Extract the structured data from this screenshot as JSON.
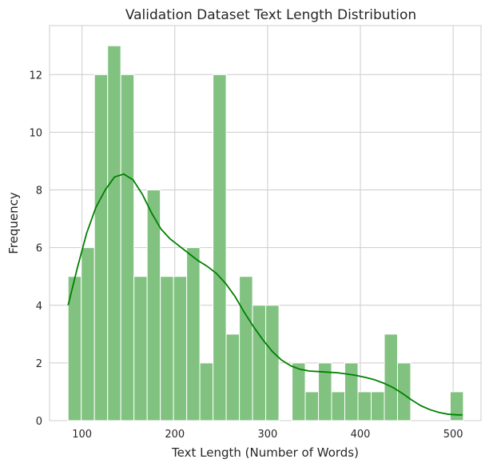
{
  "chart_data": {
    "type": "bar",
    "title": "Validation Dataset Text Length Distribution",
    "xlabel": "Text Length (Number of Words)",
    "ylabel": "Frequency",
    "xlim": [
      65,
      530
    ],
    "ylim": [
      0,
      13.7
    ],
    "xticks": [
      100,
      200,
      300,
      400,
      500
    ],
    "yticks": [
      0,
      2,
      4,
      6,
      8,
      10,
      12
    ],
    "grid": true,
    "bar_color": "#81c281",
    "kde_color": "#008000",
    "bins": {
      "start": 85,
      "width": 14.2,
      "counts": [
        5,
        6,
        12,
        13,
        12,
        5,
        8,
        5,
        5,
        6,
        2,
        12,
        3,
        5,
        4,
        4,
        0,
        2,
        1,
        2,
        1,
        2,
        1,
        1,
        3,
        2,
        0,
        0,
        0,
        1
      ]
    },
    "kde": {
      "x": [
        85,
        95,
        105,
        115,
        125,
        135,
        145,
        155,
        165,
        175,
        185,
        195,
        205,
        215,
        225,
        235,
        245,
        255,
        265,
        275,
        285,
        295,
        305,
        315,
        325,
        335,
        345,
        355,
        365,
        375,
        385,
        395,
        405,
        415,
        425,
        435,
        445,
        455,
        465,
        475,
        485,
        495,
        505,
        510
      ],
      "y": [
        4.0,
        5.3,
        6.5,
        7.4,
        8.0,
        8.45,
        8.55,
        8.35,
        7.85,
        7.2,
        6.65,
        6.3,
        6.05,
        5.8,
        5.55,
        5.35,
        5.1,
        4.75,
        4.3,
        3.75,
        3.25,
        2.8,
        2.4,
        2.1,
        1.9,
        1.78,
        1.72,
        1.7,
        1.68,
        1.66,
        1.62,
        1.57,
        1.5,
        1.42,
        1.3,
        1.15,
        0.95,
        0.72,
        0.52,
        0.38,
        0.28,
        0.22,
        0.2,
        0.2
      ]
    }
  }
}
